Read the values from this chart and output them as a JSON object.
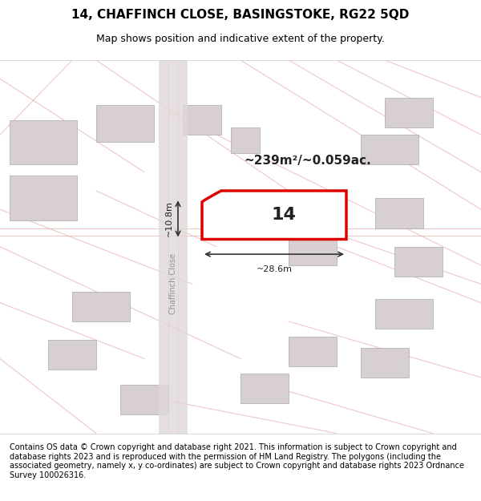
{
  "title_line1": "14, CHAFFINCH CLOSE, BASINGSTOKE, RG22 5QD",
  "title_line2": "Map shows position and indicative extent of the property.",
  "footer_text": "Contains OS data © Crown copyright and database right 2021. This information is subject to Crown copyright and database rights 2023 and is reproduced with the permission of HM Land Registry. The polygons (including the associated geometry, namely x, y co-ordinates) are subject to Crown copyright and database rights 2023 Ordnance Survey 100026316.",
  "area_label": "~239m²/~0.059ac.",
  "number_label": "14",
  "width_label": "~28.6m",
  "height_label": "~10.8m",
  "street_label": "Chaffinch Close",
  "bg_color": "#f5f0f0",
  "map_bg": "#f8f4f4",
  "property_fill": "#ffffff",
  "property_edge": "#dd0000",
  "road_color": "#e8e0e0",
  "building_color": "#d8d0d0",
  "grid_line_color": "#e8b0b0",
  "title_fontsize": 11,
  "subtitle_fontsize": 9,
  "footer_fontsize": 7
}
